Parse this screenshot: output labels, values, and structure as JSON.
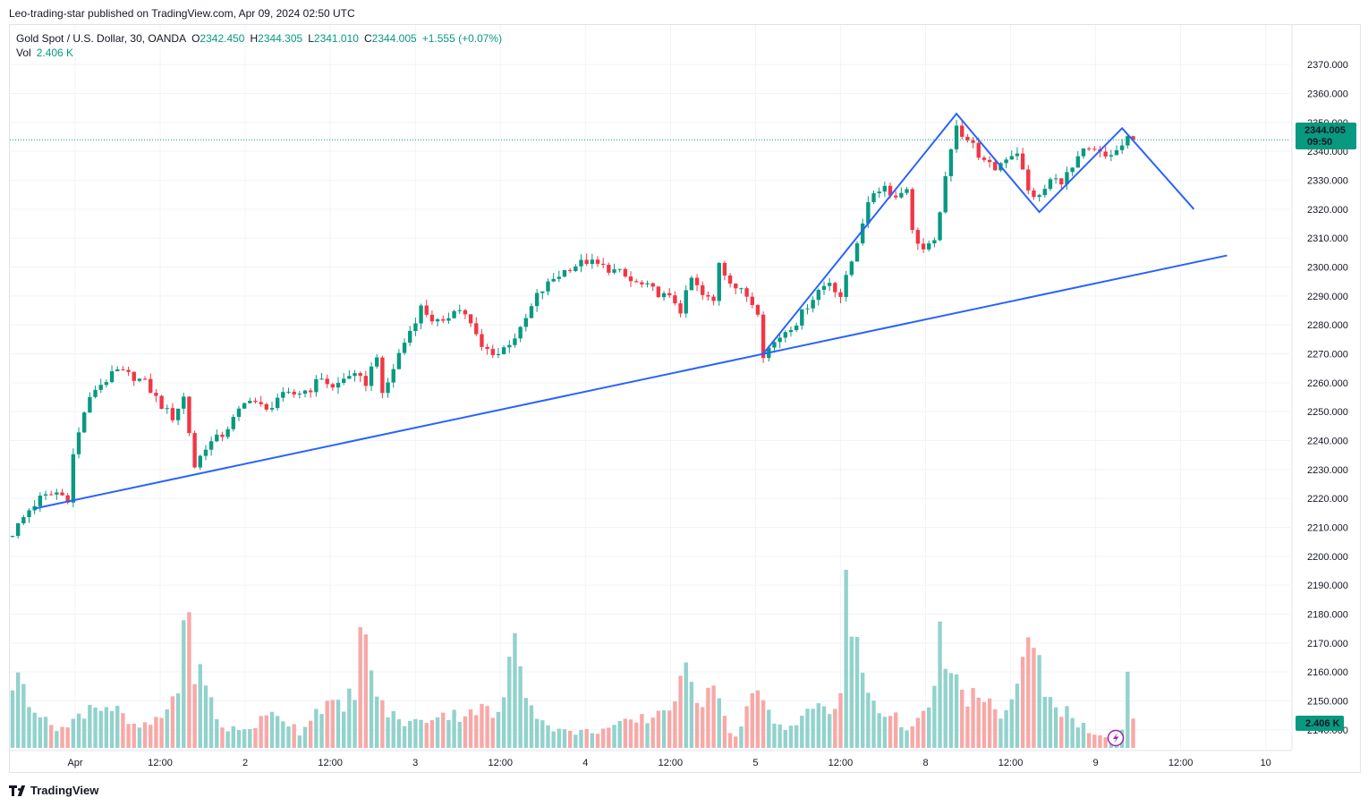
{
  "header": {
    "publisher_line": "Leo-trading-star published on TradingView.com, Apr 09, 2024 02:50 UTC"
  },
  "legend": {
    "symbol": "Gold Spot / U.S. Dollar, 30, OANDA",
    "o_label": "O",
    "o_value": "2342.450",
    "h_label": "H",
    "h_value": "2344.305",
    "l_label": "L",
    "l_value": "2341.010",
    "c_label": "C",
    "c_value": "2344.005",
    "change": "+1.555 (+0.07%)",
    "vol_label": "Vol",
    "vol_value": "2.406 K"
  },
  "price_badge": {
    "price": "2344.005",
    "countdown": "09:50"
  },
  "volume_badge": {
    "value": "2.406 K"
  },
  "footer": {
    "brand": "TradingView"
  },
  "colors": {
    "up": "#089981",
    "down": "#f23645",
    "vol_up": "#92d2cc",
    "vol_down": "#f7a9a7",
    "drawing": "#2962ff",
    "grid": "#f0f3fa"
  },
  "chart_data": {
    "type": "candlestick",
    "symbol": "Gold Spot / U.S. Dollar",
    "interval": "30",
    "y_range": [
      2135,
      2375
    ],
    "y_ticks": [
      "2370.000",
      "2360.000",
      "2350.000",
      "2340.000",
      "2330.000",
      "2320.000",
      "2310.000",
      "2300.000",
      "2290.000",
      "2280.000",
      "2270.000",
      "2260.000",
      "2250.000",
      "2240.000",
      "2230.000",
      "2220.000",
      "2210.000",
      "2200.000",
      "2190.000",
      "2180.000",
      "2170.000",
      "2160.000",
      "2150.000",
      "2140.000"
    ],
    "x_ticks": [
      "Apr",
      "12:00",
      "2",
      "12:00",
      "3",
      "12:00",
      "4",
      "12:00",
      "5",
      "12:00",
      "8",
      "12:00",
      "9",
      "12:00",
      "10"
    ],
    "last_price": 2344.005,
    "price_path": [
      [
        0,
        2208
      ],
      [
        3,
        2216
      ],
      [
        5,
        2220
      ],
      [
        8,
        2222
      ],
      [
        10,
        2220
      ],
      [
        11,
        2235
      ],
      [
        13,
        2250
      ],
      [
        15,
        2258
      ],
      [
        19,
        2264
      ],
      [
        22,
        2262
      ],
      [
        24,
        2260
      ],
      [
        27,
        2252
      ],
      [
        29,
        2248
      ],
      [
        31,
        2255
      ],
      [
        33,
        2231
      ],
      [
        35,
        2238
      ],
      [
        38,
        2242
      ],
      [
        41,
        2250
      ],
      [
        43,
        2255
      ],
      [
        46,
        2250
      ],
      [
        48,
        2255
      ],
      [
        51,
        2256
      ],
      [
        54,
        2258
      ],
      [
        56,
        2262
      ],
      [
        58,
        2258
      ],
      [
        61,
        2263
      ],
      [
        64,
        2260
      ],
      [
        66,
        2270
      ],
      [
        67,
        2255
      ],
      [
        70,
        2270
      ],
      [
        72,
        2278
      ],
      [
        74,
        2286
      ],
      [
        76,
        2282
      ],
      [
        78,
        2280
      ],
      [
        80,
        2286
      ],
      [
        82,
        2284
      ],
      [
        83,
        2280
      ],
      [
        85,
        2272
      ],
      [
        88,
        2270
      ],
      [
        90,
        2274
      ],
      [
        92,
        2278
      ],
      [
        95,
        2290
      ],
      [
        98,
        2296
      ],
      [
        101,
        2300
      ],
      [
        104,
        2302
      ],
      [
        107,
        2300
      ],
      [
        110,
        2298
      ],
      [
        112,
        2295
      ],
      [
        115,
        2293
      ],
      [
        118,
        2290
      ],
      [
        120,
        2288
      ],
      [
        121,
        2285
      ],
      [
        123,
        2296
      ],
      [
        125,
        2290
      ],
      [
        127,
        2288
      ],
      [
        128,
        2302
      ],
      [
        129,
        2298
      ],
      [
        131,
        2293
      ],
      [
        133,
        2290
      ],
      [
        135,
        2285
      ],
      [
        136,
        2270
      ],
      [
        138,
        2274
      ],
      [
        140,
        2278
      ],
      [
        142,
        2281
      ],
      [
        144,
        2287
      ],
      [
        146,
        2292
      ],
      [
        148,
        2295
      ],
      [
        150,
        2290
      ],
      [
        152,
        2302
      ],
      [
        154,
        2316
      ],
      [
        156,
        2326
      ],
      [
        158,
        2328
      ],
      [
        160,
        2324
      ],
      [
        162,
        2328
      ],
      [
        163,
        2312
      ],
      [
        165,
        2306
      ],
      [
        167,
        2308
      ],
      [
        168,
        2320
      ],
      [
        170,
        2340
      ],
      [
        171,
        2350
      ],
      [
        172,
        2346
      ],
      [
        174,
        2342
      ],
      [
        176,
        2336
      ],
      [
        178,
        2334
      ],
      [
        180,
        2338
      ],
      [
        182,
        2340
      ],
      [
        184,
        2326
      ],
      [
        186,
        2324
      ],
      [
        188,
        2330
      ],
      [
        190,
        2330
      ],
      [
        192,
        2334
      ],
      [
        194,
        2340
      ],
      [
        196,
        2340
      ],
      [
        198,
        2338
      ],
      [
        200,
        2340
      ],
      [
        202,
        2344
      ],
      [
        203,
        2344
      ]
    ],
    "volume_range": [
      0,
      200
    ],
    "volume_path": [
      [
        0,
        75
      ],
      [
        2,
        70
      ],
      [
        6,
        28
      ],
      [
        10,
        22
      ],
      [
        14,
        50
      ],
      [
        18,
        45
      ],
      [
        22,
        22
      ],
      [
        26,
        28
      ],
      [
        28,
        42
      ],
      [
        30,
        70
      ],
      [
        31,
        150
      ],
      [
        33,
        95
      ],
      [
        35,
        65
      ],
      [
        38,
        22
      ],
      [
        42,
        20
      ],
      [
        48,
        40
      ],
      [
        52,
        18
      ],
      [
        56,
        50
      ],
      [
        60,
        42
      ],
      [
        62,
        70
      ],
      [
        63,
        130
      ],
      [
        65,
        85
      ],
      [
        67,
        45
      ],
      [
        70,
        30
      ],
      [
        74,
        28
      ],
      [
        77,
        40
      ],
      [
        80,
        36
      ],
      [
        84,
        45
      ],
      [
        88,
        35
      ],
      [
        90,
        85
      ],
      [
        91,
        128
      ],
      [
        93,
        70
      ],
      [
        96,
        28
      ],
      [
        100,
        18
      ],
      [
        104,
        18
      ],
      [
        108,
        22
      ],
      [
        112,
        28
      ],
      [
        116,
        35
      ],
      [
        120,
        55
      ],
      [
        122,
        78
      ],
      [
        125,
        55
      ],
      [
        127,
        90
      ],
      [
        129,
        30
      ],
      [
        131,
        12
      ],
      [
        134,
        60
      ],
      [
        136,
        48
      ],
      [
        138,
        28
      ],
      [
        140,
        20
      ],
      [
        144,
        45
      ],
      [
        148,
        40
      ],
      [
        150,
        58
      ],
      [
        151,
        165
      ],
      [
        153,
        110
      ],
      [
        155,
        62
      ],
      [
        157,
        45
      ],
      [
        160,
        32
      ],
      [
        163,
        22
      ],
      [
        166,
        40
      ],
      [
        168,
        120
      ],
      [
        170,
        76
      ],
      [
        172,
        60
      ],
      [
        174,
        58
      ],
      [
        176,
        48
      ],
      [
        178,
        42
      ],
      [
        180,
        38
      ],
      [
        183,
        95
      ],
      [
        185,
        105
      ],
      [
        187,
        70
      ],
      [
        190,
        45
      ],
      [
        193,
        28
      ],
      [
        196,
        12
      ],
      [
        199,
        10
      ],
      [
        201,
        22
      ],
      [
        202,
        70
      ],
      [
        203,
        30
      ]
    ],
    "drawings": {
      "trendline": [
        [
          4,
          2216.5
        ],
        [
          220,
          2304
        ]
      ],
      "pattern": [
        [
          136,
          2270
        ],
        [
          171,
          2353
        ],
        [
          186,
          2319
        ],
        [
          201,
          2348
        ],
        [
          214,
          2320
        ]
      ]
    }
  }
}
